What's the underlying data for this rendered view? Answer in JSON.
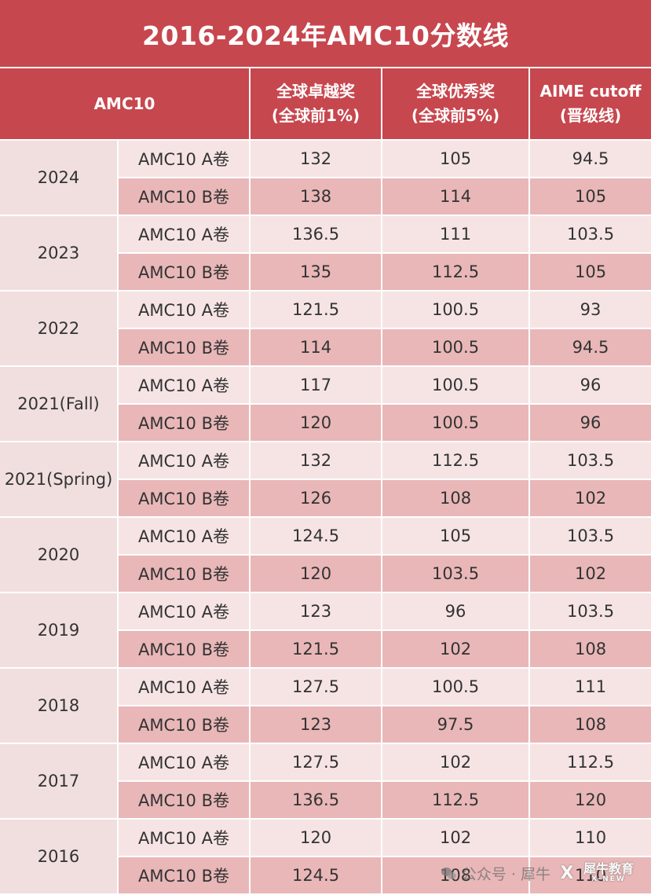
{
  "title": "2016-2024年AMC10分数线",
  "headers": {
    "category": "AMC10",
    "col1": [
      "全球卓越奖",
      "(全球前1%)"
    ],
    "col2": [
      "全球优秀奖",
      "(全球前5%)"
    ],
    "col3": [
      "AIME cutoff",
      "(晋级线)"
    ]
  },
  "years": [
    {
      "year": "2024",
      "rows": [
        {
          "exam": "AMC10 A卷",
          "distinction": "132",
          "honor": "105",
          "aime": "94.5"
        },
        {
          "exam": "AMC10 B卷",
          "distinction": "138",
          "honor": "114",
          "aime": "105"
        }
      ]
    },
    {
      "year": "2023",
      "rows": [
        {
          "exam": "AMC10 A卷",
          "distinction": "136.5",
          "honor": "111",
          "aime": "103.5"
        },
        {
          "exam": "AMC10 B卷",
          "distinction": "135",
          "honor": "112.5",
          "aime": "105"
        }
      ]
    },
    {
      "year": "2022",
      "rows": [
        {
          "exam": "AMC10 A卷",
          "distinction": "121.5",
          "honor": "100.5",
          "aime": "93"
        },
        {
          "exam": "AMC10 B卷",
          "distinction": "114",
          "honor": "100.5",
          "aime": "94.5"
        }
      ]
    },
    {
      "year": "2021(Fall)",
      "rows": [
        {
          "exam": "AMC10 A卷",
          "distinction": "117",
          "honor": "100.5",
          "aime": "96"
        },
        {
          "exam": "AMC10 B卷",
          "distinction": "120",
          "honor": "100.5",
          "aime": "96"
        }
      ]
    },
    {
      "year": "2021(Spring)",
      "rows": [
        {
          "exam": "AMC10 A卷",
          "distinction": "132",
          "honor": "112.5",
          "aime": "103.5"
        },
        {
          "exam": "AMC10 B卷",
          "distinction": "126",
          "honor": "108",
          "aime": "102"
        }
      ]
    },
    {
      "year": "2020",
      "rows": [
        {
          "exam": "AMC10 A卷",
          "distinction": "124.5",
          "honor": "105",
          "aime": "103.5"
        },
        {
          "exam": "AMC10 B卷",
          "distinction": "120",
          "honor": "103.5",
          "aime": "102"
        }
      ]
    },
    {
      "year": "2019",
      "rows": [
        {
          "exam": "AMC10 A卷",
          "distinction": "123",
          "honor": "96",
          "aime": "103.5"
        },
        {
          "exam": "AMC10 B卷",
          "distinction": "121.5",
          "honor": "102",
          "aime": "108"
        }
      ]
    },
    {
      "year": "2018",
      "rows": [
        {
          "exam": "AMC10 A卷",
          "distinction": "127.5",
          "honor": "100.5",
          "aime": "111"
        },
        {
          "exam": "AMC10 B卷",
          "distinction": "123",
          "honor": "97.5",
          "aime": "108"
        }
      ]
    },
    {
      "year": "2017",
      "rows": [
        {
          "exam": "AMC10 A卷",
          "distinction": "127.5",
          "honor": "102",
          "aime": "112.5"
        },
        {
          "exam": "AMC10 B卷",
          "distinction": "136.5",
          "honor": "112.5",
          "aime": "120"
        }
      ]
    },
    {
      "year": "2016",
      "rows": [
        {
          "exam": "AMC10 A卷",
          "distinction": "120",
          "honor": "102",
          "aime": "110"
        },
        {
          "exam": "AMC10 B卷",
          "distinction": "124.5",
          "honor": "108",
          "aime": "110"
        }
      ]
    }
  ],
  "watermark": {
    "account": "公众号 · 犀牛",
    "brand_main": "犀牛教育",
    "brand_sub": "X-NEW",
    "icon": "wechat-icon"
  },
  "colors": {
    "header": "#c7474e",
    "row_a": "#f6e4e4",
    "row_b": "#e9b7b8",
    "year_cell": "#f1dfdf"
  }
}
